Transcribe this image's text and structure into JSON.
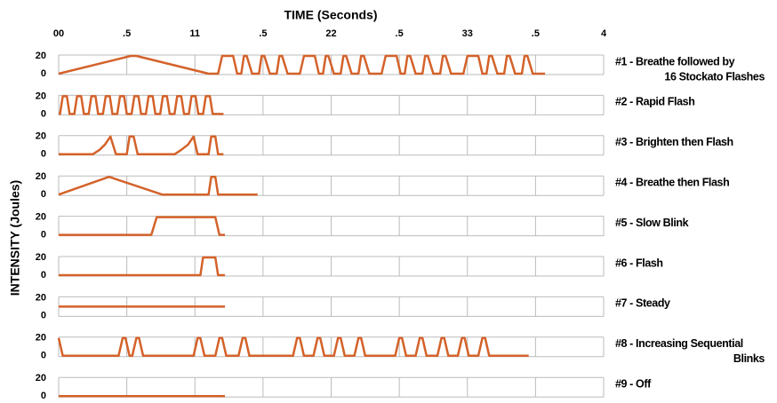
{
  "xlabel": "TIME (Seconds)",
  "ylabel": "INTENSITY (Joules)",
  "xlim": [
    0,
    4
  ],
  "xticks": [
    {
      "value": 0,
      "label": "00"
    },
    {
      "value": 0.5,
      "label": ".5"
    },
    {
      "value": 1,
      "label": "11"
    },
    {
      "value": 1.5,
      "label": ".5"
    },
    {
      "value": 2,
      "label": "22"
    },
    {
      "value": 2.5,
      "label": ".5"
    },
    {
      "value": 3,
      "label": "33"
    },
    {
      "value": 3.5,
      "label": ".5"
    },
    4
  ],
  "chart_data": [
    {
      "type": "line",
      "title": [
        "#1 - Breathe followed by",
        "16 Stockato Flashes"
      ],
      "color": "#d4622a",
      "ylim": [
        -1,
        21
      ],
      "yticks": [
        0,
        20
      ],
      "x": [
        0,
        0.53,
        0.57,
        1.1,
        1.17,
        1.2,
        1.28,
        1.31,
        1.34,
        1.36,
        1.38,
        1.42,
        1.47,
        1.49,
        1.51,
        1.55,
        1.6,
        1.62,
        1.64,
        1.68,
        1.77,
        1.8,
        1.88,
        1.91,
        1.94,
        1.96,
        1.98,
        2.02,
        2.07,
        2.09,
        2.11,
        2.15,
        2.2,
        2.22,
        2.24,
        2.28,
        2.37,
        2.4,
        2.48,
        2.51,
        2.54,
        2.56,
        2.58,
        2.62,
        2.67,
        2.69,
        2.71,
        2.75,
        2.8,
        2.82,
        2.84,
        2.88,
        2.97,
        3.0,
        3.08,
        3.11,
        3.14,
        3.16,
        3.18,
        3.22,
        3.27,
        3.29,
        3.31,
        3.35,
        3.4,
        3.42,
        3.44,
        3.48,
        3.57
      ],
      "values": [
        0,
        20,
        20,
        0,
        0,
        20,
        20,
        0,
        0,
        20,
        20,
        0,
        0,
        20,
        20,
        0,
        0,
        20,
        20,
        0,
        0,
        20,
        20,
        0,
        0,
        20,
        20,
        0,
        0,
        20,
        20,
        0,
        0,
        20,
        20,
        0,
        0,
        20,
        20,
        0,
        0,
        20,
        20,
        0,
        0,
        20,
        20,
        0,
        0,
        20,
        20,
        0,
        0,
        20,
        20,
        0,
        0,
        20,
        20,
        0,
        0,
        20,
        20,
        0,
        0,
        20,
        20,
        0,
        0
      ]
    },
    {
      "type": "line",
      "title": [
        "#2 - Rapid Flash"
      ],
      "color": "#d4622a",
      "ylim": [
        -1,
        21
      ],
      "yticks": [
        0,
        20
      ],
      "x": [
        0,
        0.01,
        0.03,
        0.06,
        0.08,
        0.115,
        0.135,
        0.165,
        0.185,
        0.22,
        0.24,
        0.27,
        0.29,
        0.325,
        0.345,
        0.375,
        0.395,
        0.43,
        0.45,
        0.48,
        0.5,
        0.535,
        0.555,
        0.585,
        0.605,
        0.64,
        0.66,
        0.69,
        0.71,
        0.745,
        0.765,
        0.795,
        0.815,
        0.85,
        0.87,
        0.9,
        0.92,
        0.955,
        0.975,
        1.005,
        1.025,
        1.06,
        1.08,
        1.11,
        1.13,
        1.21
      ],
      "values": [
        0,
        0,
        20,
        20,
        0,
        0,
        20,
        20,
        0,
        0,
        20,
        20,
        0,
        0,
        20,
        20,
        0,
        0,
        20,
        20,
        0,
        0,
        20,
        20,
        0,
        0,
        20,
        20,
        0,
        0,
        20,
        20,
        0,
        0,
        20,
        20,
        0,
        0,
        20,
        20,
        0,
        0,
        20,
        20,
        0,
        0
      ]
    },
    {
      "type": "line",
      "title": [
        "#3 - Brighten then Flash"
      ],
      "color": "#d4622a",
      "ylim": [
        -1,
        21
      ],
      "yticks": [
        0,
        20
      ],
      "x": [
        0,
        0.25,
        0.3,
        0.34,
        0.38,
        0.42,
        0.5,
        0.52,
        0.55,
        0.58,
        0.85,
        0.9,
        0.95,
        0.99,
        1.02,
        1.1,
        1.12,
        1.15,
        1.17,
        1.21
      ],
      "values": [
        0,
        0,
        5,
        11,
        20,
        0,
        0,
        20,
        20,
        0,
        0,
        5,
        11,
        20,
        0,
        0,
        20,
        20,
        0,
        0
      ]
    },
    {
      "type": "line",
      "title": [
        "#4 - Breathe then Flash"
      ],
      "color": "#d4622a",
      "ylim": [
        -1,
        21
      ],
      "yticks": [
        0,
        20
      ],
      "x": [
        0,
        0.37,
        0.76,
        1.1,
        1.12,
        1.15,
        1.17,
        1.46
      ],
      "values": [
        0,
        20,
        0,
        0,
        20,
        20,
        0,
        0
      ]
    },
    {
      "type": "line",
      "title": [
        "#5 - Slow Blink"
      ],
      "color": "#d4622a",
      "ylim": [
        -1,
        21
      ],
      "yticks": [
        0,
        20
      ],
      "x": [
        0,
        0.68,
        0.72,
        1.15,
        1.18,
        1.22
      ],
      "values": [
        0,
        0,
        20,
        20,
        0,
        0
      ]
    },
    {
      "type": "line",
      "title": [
        "#6 - Flash"
      ],
      "color": "#d4622a",
      "ylim": [
        -1,
        21
      ],
      "yticks": [
        0,
        20
      ],
      "x": [
        0,
        1.04,
        1.06,
        1.15,
        1.17,
        1.22
      ],
      "values": [
        0,
        0,
        20,
        20,
        0,
        0
      ]
    },
    {
      "type": "line",
      "title": [
        "#7 - Steady"
      ],
      "color": "#d4622a",
      "ylim": [
        -1,
        21
      ],
      "yticks": [
        0,
        20
      ],
      "x": [
        0,
        1.22
      ],
      "values": [
        10,
        10
      ]
    },
    {
      "type": "line",
      "title": [
        "#8 - Increasing Sequential",
        "Blinks"
      ],
      "color": "#d4622a",
      "ylim": [
        -1,
        21
      ],
      "yticks": [
        0,
        20
      ],
      "x": [
        0,
        0.03,
        0.44,
        0.47,
        0.49,
        0.52,
        0.54,
        0.57,
        0.59,
        0.62,
        0.99,
        1.02,
        1.04,
        1.07,
        1.15,
        1.18,
        1.2,
        1.23,
        1.32,
        1.35,
        1.37,
        1.4,
        1.72,
        1.75,
        1.77,
        1.8,
        1.87,
        1.9,
        1.92,
        1.95,
        2.02,
        2.05,
        2.07,
        2.1,
        2.17,
        2.2,
        2.22,
        2.25,
        2.47,
        2.5,
        2.52,
        2.55,
        2.62,
        2.65,
        2.67,
        2.7,
        2.78,
        2.81,
        2.83,
        2.86,
        2.93,
        2.96,
        2.98,
        3.01,
        3.08,
        3.11,
        3.13,
        3.16,
        3.45
      ],
      "values": [
        20,
        0,
        0,
        20,
        20,
        0,
        0,
        20,
        20,
        0,
        0,
        20,
        20,
        0,
        0,
        20,
        20,
        0,
        0,
        20,
        20,
        0,
        0,
        20,
        20,
        0,
        0,
        20,
        20,
        0,
        0,
        20,
        20,
        0,
        0,
        20,
        20,
        0,
        0,
        20,
        20,
        0,
        0,
        20,
        20,
        0,
        0,
        20,
        20,
        0,
        0,
        20,
        20,
        0,
        0,
        20,
        20,
        0,
        0
      ]
    },
    {
      "type": "line",
      "title": [
        "#9 - Off"
      ],
      "color": "#d4622a",
      "ylim": [
        -1,
        21
      ],
      "yticks": [
        0,
        20
      ],
      "x": [
        0,
        1.22
      ],
      "values": [
        0,
        0
      ]
    }
  ]
}
